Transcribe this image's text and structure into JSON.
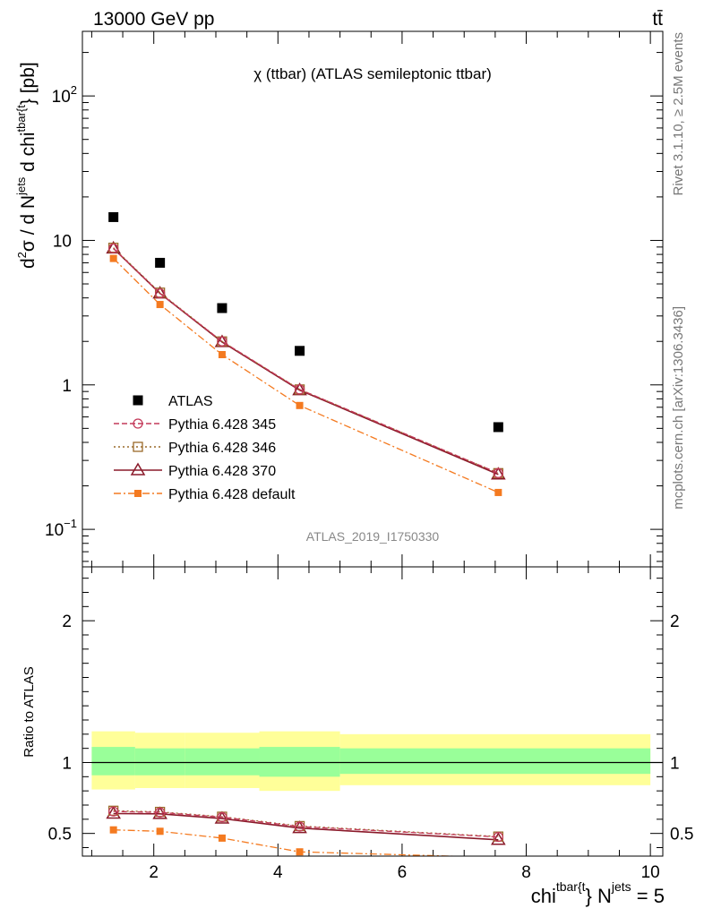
{
  "header": {
    "energy_label": "13000 GeV pp",
    "process_label": "tt̄"
  },
  "side_labels": {
    "rivet": "Rivet 3.1.10, ≥ 2.5M events",
    "mcplots": "mcplots.cern.ch [arXiv:1306.3436]"
  },
  "chart_data": [
    {
      "type": "scatter",
      "title": "χ (ttbar) (ATLAS semileptonic ttbar)",
      "watermark": "ATLAS_2019_I1750330",
      "y_scale": "log",
      "ylabel_parts": {
        "d2": "d",
        "sup2": "2",
        "sigma": "σ / d N",
        "sup_jets": "jets",
        "dchi": " d chi",
        "sup_tbar": "tbar{t",
        "unit": "} [pb]"
      },
      "ylim": [
        0.055,
        280
      ],
      "y_ticks": [
        {
          "value": 0.1,
          "base": "10",
          "exp": "−1"
        },
        {
          "value": 1,
          "label": "1"
        },
        {
          "value": 10,
          "label": "10"
        },
        {
          "value": 100,
          "base": "10",
          "exp": "2"
        }
      ],
      "xlim": [
        0.85,
        10.2
      ],
      "legend_position": "middle-left",
      "x_points": [
        1.35,
        2.1,
        3.1,
        4.35,
        7.55
      ],
      "series": [
        {
          "name": "ATLAS",
          "values": [
            14.5,
            7.0,
            3.4,
            1.72,
            0.51
          ],
          "color": "#000000",
          "marker": "filled-square",
          "line": "none"
        },
        {
          "name": "Pythia 6.428 345",
          "values": [
            8.8,
            4.3,
            2.0,
            0.93,
            0.245
          ],
          "color": "#c43a5a",
          "marker": "open-circle",
          "line": "dashed"
        },
        {
          "name": "Pythia 6.428 346",
          "values": [
            8.9,
            4.35,
            2.0,
            0.93,
            0.245
          ],
          "color": "#9a6a2a",
          "marker": "open-square",
          "line": "dotted"
        },
        {
          "name": "Pythia 6.428 370",
          "values": [
            8.8,
            4.3,
            1.98,
            0.92,
            0.24
          ],
          "color": "#8a1a2a",
          "marker": "open-triangle",
          "line": "solid"
        },
        {
          "name": "Pythia 6.428 default",
          "values": [
            7.5,
            3.6,
            1.62,
            0.72,
            0.18
          ],
          "color": "#f47a20",
          "marker": "filled-square-small",
          "line": "dashdot"
        }
      ]
    },
    {
      "type": "scatter",
      "ylabel": "Ratio to ATLAS",
      "xlabel_parts": {
        "chi": "chi",
        "sup_tbar": "tbar{t",
        "n_jets": "} N",
        "sup_jets": "jets",
        "eq": " = 5"
      },
      "xlim": [
        0.85,
        10.2
      ],
      "x_ticks": [
        2,
        4,
        6,
        8,
        10
      ],
      "ylim": [
        0.34,
        2.38
      ],
      "y_ticks": [
        0.5,
        1,
        2
      ],
      "reference_line": 1,
      "uncertainty_bins": [
        {
          "x_range": [
            1.0,
            1.7
          ],
          "stat_band": [
            0.91,
            1.11
          ],
          "total_band": [
            0.81,
            1.22
          ]
        },
        {
          "x_range": [
            1.7,
            2.5
          ],
          "stat_band": [
            0.91,
            1.1
          ],
          "total_band": [
            0.82,
            1.21
          ]
        },
        {
          "x_range": [
            2.5,
            3.7
          ],
          "stat_band": [
            0.91,
            1.1
          ],
          "total_band": [
            0.82,
            1.21
          ]
        },
        {
          "x_range": [
            3.7,
            5.0
          ],
          "stat_band": [
            0.9,
            1.11
          ],
          "total_band": [
            0.8,
            1.22
          ]
        },
        {
          "x_range": [
            5.0,
            10.0
          ],
          "stat_band": [
            0.92,
            1.1
          ],
          "total_band": [
            0.84,
            1.2
          ]
        }
      ],
      "band_colors": {
        "total": "#ffff99",
        "stat": "#99ff99"
      },
      "series": [
        {
          "name": "Pythia 6.428 345",
          "values": [
            0.655,
            0.648,
            0.615,
            0.548,
            0.475
          ],
          "color": "#c43a5a",
          "marker": "open-circle",
          "line": "dashed"
        },
        {
          "name": "Pythia 6.428 346",
          "values": [
            0.66,
            0.652,
            0.618,
            0.552,
            0.478
          ],
          "color": "#9a6a2a",
          "marker": "open-square",
          "line": "dotted"
        },
        {
          "name": "Pythia 6.428 370",
          "values": [
            0.64,
            0.638,
            0.605,
            0.538,
            0.455
          ],
          "color": "#8a1a2a",
          "marker": "open-triangle",
          "line": "solid"
        },
        {
          "name": "Pythia 6.428 default",
          "values": [
            0.525,
            0.515,
            0.467,
            0.37,
            0.33
          ],
          "color": "#f47a20",
          "marker": "filled-square-small",
          "line": "dashdot"
        }
      ]
    }
  ]
}
